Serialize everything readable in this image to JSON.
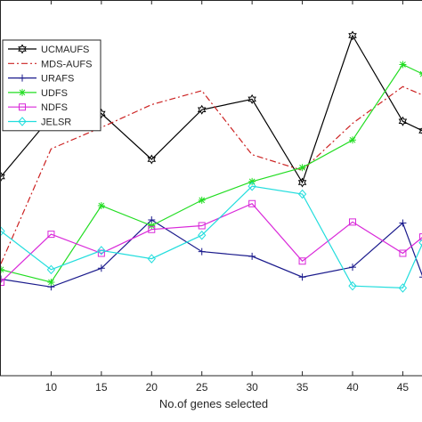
{
  "chart_data": {
    "type": "line",
    "title": "",
    "xlabel": "No.of genes selected",
    "ylabel": "",
    "xlim": [
      5,
      47
    ],
    "ylim": [
      0,
      1
    ],
    "x_ticks": [
      10,
      15,
      20,
      25,
      30,
      35,
      40,
      45
    ],
    "x_tick_labels": [
      "10",
      "15",
      "20",
      "25",
      "30",
      "35",
      "40",
      "45"
    ],
    "grid": false,
    "legend_position": "top-left",
    "x": [
      5,
      10,
      15,
      20,
      25,
      30,
      35,
      40,
      45,
      47
    ],
    "series": [
      {
        "name": "UCMAUFS",
        "color": "#000000",
        "dash": "solid",
        "marker": "hexagram",
        "values": [
          0.585,
          0.761,
          0.771,
          0.636,
          0.782,
          0.813,
          0.568,
          1.0,
          0.748,
          0.72
        ]
      },
      {
        "name": "MDS-AUFS",
        "color": "#cc2222",
        "dash": "dashdot",
        "marker": "none",
        "values": [
          0.329,
          0.667,
          0.73,
          0.797,
          0.838,
          0.65,
          0.604,
          0.742,
          0.85,
          0.825
        ]
      },
      {
        "name": "URAFS",
        "color": "#1a1a8c",
        "dash": "solid",
        "marker": "plus",
        "values": [
          0.284,
          0.261,
          0.316,
          0.458,
          0.365,
          0.351,
          0.29,
          0.319,
          0.449,
          0.29
        ]
      },
      {
        "name": "UDFS",
        "color": "#22dd22",
        "dash": "solid",
        "marker": "asterisk",
        "values": [
          0.312,
          0.275,
          0.5,
          0.441,
          0.516,
          0.571,
          0.612,
          0.693,
          0.915,
          0.887
        ]
      },
      {
        "name": "NDFS",
        "color": "#d928d9",
        "dash": "solid",
        "marker": "square",
        "values": [
          0.275,
          0.416,
          0.36,
          0.43,
          0.441,
          0.506,
          0.337,
          0.452,
          0.36,
          0.408
        ]
      },
      {
        "name": "JELSR",
        "color": "#22dddd",
        "dash": "solid",
        "marker": "diamond",
        "values": [
          0.425,
          0.312,
          0.368,
          0.344,
          0.413,
          0.557,
          0.534,
          0.264,
          0.258,
          0.391
        ]
      }
    ]
  }
}
